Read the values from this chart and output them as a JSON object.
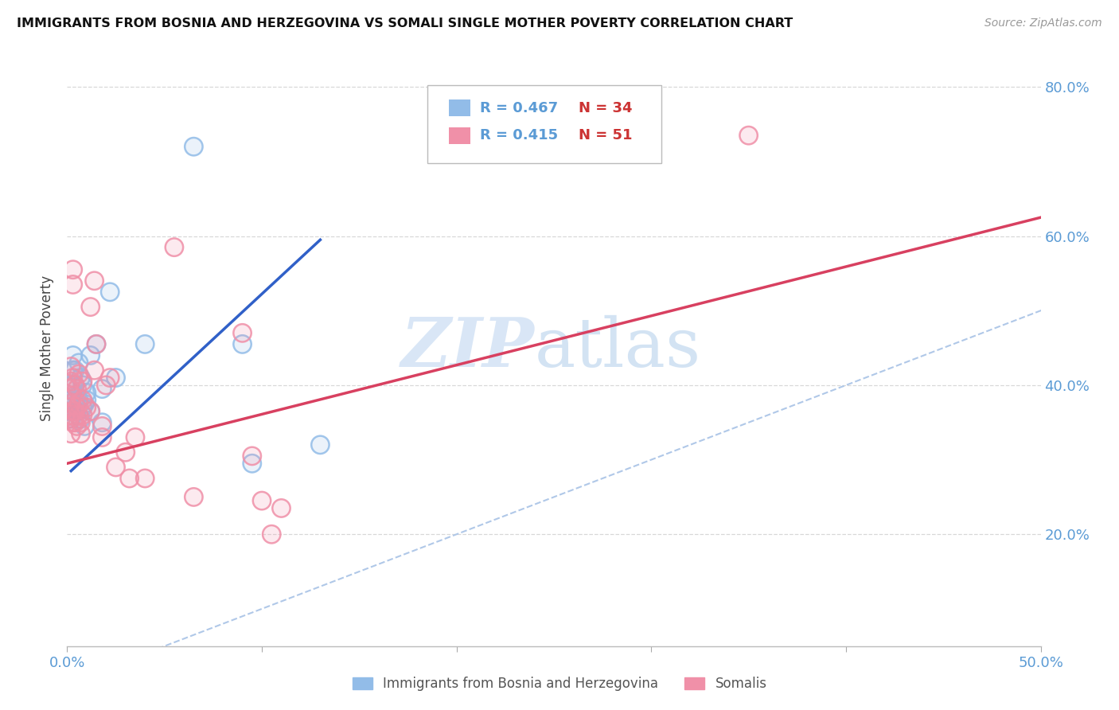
{
  "title": "IMMIGRANTS FROM BOSNIA AND HERZEGOVINA VS SOMALI SINGLE MOTHER POVERTY CORRELATION CHART",
  "source": "Source: ZipAtlas.com",
  "ylabel": "Single Mother Poverty",
  "xrange": [
    0.0,
    0.5
  ],
  "yrange": [
    0.05,
    0.85
  ],
  "legend_blue_r": "R = 0.467",
  "legend_blue_n": "N = 34",
  "legend_pink_r": "R = 0.415",
  "legend_pink_n": "N = 51",
  "legend_label_blue": "Immigrants from Bosnia and Herzegovina",
  "legend_label_pink": "Somalis",
  "blue_color": "#92bce8",
  "pink_color": "#f090a8",
  "trendline_blue_color": "#3060c8",
  "trendline_pink_color": "#d84060",
  "diagonal_color": "#b0c8e8",
  "grid_color": "#d8d8d8",
  "ytick_color": "#5b9bd5",
  "xtick_color": "#5b9bd5",
  "blue_scatter": [
    [
      0.001,
      0.355
    ],
    [
      0.001,
      0.365
    ],
    [
      0.002,
      0.38
    ],
    [
      0.002,
      0.355
    ],
    [
      0.003,
      0.4
    ],
    [
      0.003,
      0.42
    ],
    [
      0.003,
      0.44
    ],
    [
      0.004,
      0.38
    ],
    [
      0.004,
      0.4
    ],
    [
      0.004,
      0.42
    ],
    [
      0.005,
      0.365
    ],
    [
      0.005,
      0.385
    ],
    [
      0.006,
      0.43
    ],
    [
      0.006,
      0.38
    ],
    [
      0.007,
      0.355
    ],
    [
      0.007,
      0.41
    ],
    [
      0.008,
      0.37
    ],
    [
      0.008,
      0.4
    ],
    [
      0.009,
      0.375
    ],
    [
      0.009,
      0.345
    ],
    [
      0.01,
      0.38
    ],
    [
      0.01,
      0.39
    ],
    [
      0.012,
      0.44
    ],
    [
      0.012,
      0.365
    ],
    [
      0.015,
      0.455
    ],
    [
      0.018,
      0.395
    ],
    [
      0.018,
      0.35
    ],
    [
      0.022,
      0.525
    ],
    [
      0.025,
      0.41
    ],
    [
      0.04,
      0.455
    ],
    [
      0.065,
      0.72
    ],
    [
      0.09,
      0.455
    ],
    [
      0.095,
      0.295
    ],
    [
      0.13,
      0.32
    ]
  ],
  "pink_scatter": [
    [
      0.001,
      0.355
    ],
    [
      0.001,
      0.37
    ],
    [
      0.001,
      0.395
    ],
    [
      0.002,
      0.335
    ],
    [
      0.002,
      0.36
    ],
    [
      0.002,
      0.375
    ],
    [
      0.002,
      0.405
    ],
    [
      0.002,
      0.425
    ],
    [
      0.003,
      0.35
    ],
    [
      0.003,
      0.365
    ],
    [
      0.003,
      0.385
    ],
    [
      0.003,
      0.41
    ],
    [
      0.003,
      0.535
    ],
    [
      0.003,
      0.555
    ],
    [
      0.004,
      0.35
    ],
    [
      0.004,
      0.365
    ],
    [
      0.004,
      0.4
    ],
    [
      0.005,
      0.345
    ],
    [
      0.005,
      0.37
    ],
    [
      0.005,
      0.395
    ],
    [
      0.006,
      0.36
    ],
    [
      0.006,
      0.375
    ],
    [
      0.006,
      0.415
    ],
    [
      0.007,
      0.335
    ],
    [
      0.007,
      0.35
    ],
    [
      0.008,
      0.36
    ],
    [
      0.008,
      0.38
    ],
    [
      0.008,
      0.405
    ],
    [
      0.01,
      0.37
    ],
    [
      0.012,
      0.365
    ],
    [
      0.012,
      0.505
    ],
    [
      0.014,
      0.42
    ],
    [
      0.014,
      0.54
    ],
    [
      0.015,
      0.455
    ],
    [
      0.018,
      0.33
    ],
    [
      0.018,
      0.345
    ],
    [
      0.02,
      0.4
    ],
    [
      0.022,
      0.41
    ],
    [
      0.025,
      0.29
    ],
    [
      0.03,
      0.31
    ],
    [
      0.032,
      0.275
    ],
    [
      0.035,
      0.33
    ],
    [
      0.04,
      0.275
    ],
    [
      0.055,
      0.585
    ],
    [
      0.065,
      0.25
    ],
    [
      0.09,
      0.47
    ],
    [
      0.095,
      0.305
    ],
    [
      0.1,
      0.245
    ],
    [
      0.105,
      0.2
    ],
    [
      0.11,
      0.235
    ],
    [
      0.35,
      0.735
    ]
  ],
  "blue_trend_x": [
    0.002,
    0.13
  ],
  "blue_trend_y": [
    0.285,
    0.595
  ],
  "pink_trend_x": [
    0.0,
    0.5
  ],
  "pink_trend_y": [
    0.295,
    0.625
  ]
}
